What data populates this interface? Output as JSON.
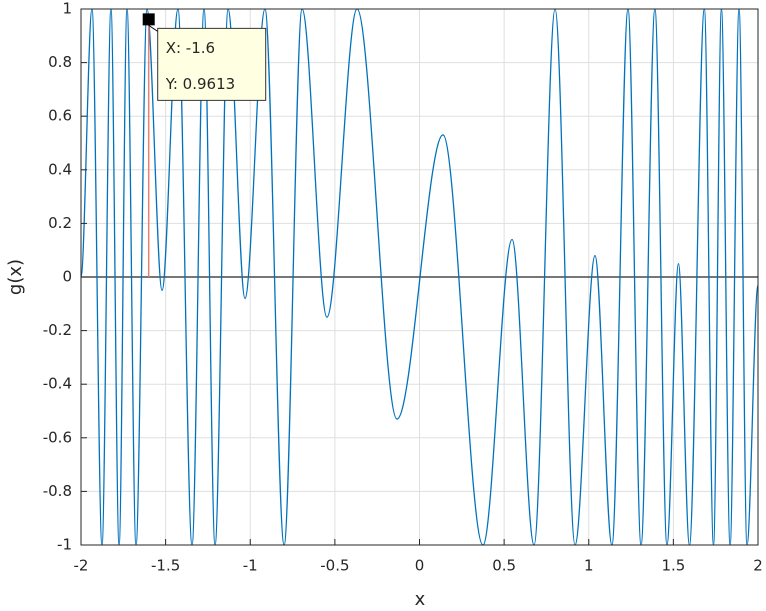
{
  "chart_data": {
    "type": "line",
    "xlabel": "x",
    "ylabel": "g(x)",
    "x": [
      -2,
      -1.935,
      -1.876,
      -1.823,
      -1.775,
      -1.728,
      -1.675,
      -1.61,
      -1.521,
      -1.427,
      -1.344,
      -1.273,
      -1.208,
      -1.131,
      -1.031,
      -0.913,
      -0.8,
      -0.694,
      -0.547,
      -0.369,
      -0.133,
      0.139,
      0.375,
      0.547,
      0.677,
      0.801,
      0.919,
      1.037,
      1.137,
      1.232,
      1.309,
      1.391,
      1.462,
      1.53,
      1.595,
      1.683,
      1.737,
      1.784,
      1.835,
      1.888,
      1.935,
      2
    ],
    "values": [
      0,
      1,
      -1,
      1,
      -1,
      1,
      -1,
      1,
      -0.05,
      1,
      -1,
      1,
      -1,
      1,
      -0.08,
      1,
      -1,
      1,
      -0.15,
      1,
      -0.53,
      0.53,
      -1,
      0.14,
      -1,
      1,
      -1,
      0.08,
      -1,
      1,
      -1,
      1,
      -1,
      0.05,
      -1,
      1,
      -1,
      1,
      -1,
      1,
      -1,
      -0.03
    ],
    "color": "#0072bd",
    "xlim": [
      -2,
      2
    ],
    "xticks": [
      -2,
      -1.5,
      -1,
      -0.5,
      0,
      0.5,
      1,
      1.5,
      2
    ],
    "ylim": [
      -1,
      1
    ],
    "yticks": [
      -1,
      -0.8,
      -0.6,
      -0.4,
      -0.2,
      0,
      0.2,
      0.4,
      0.6,
      0.8,
      1
    ],
    "grid": true,
    "zero_line": true,
    "datatip": {
      "x": -1.6,
      "y": 0.9613,
      "x_label": "X: -1.6",
      "y_label": "Y: 0.9613"
    }
  }
}
